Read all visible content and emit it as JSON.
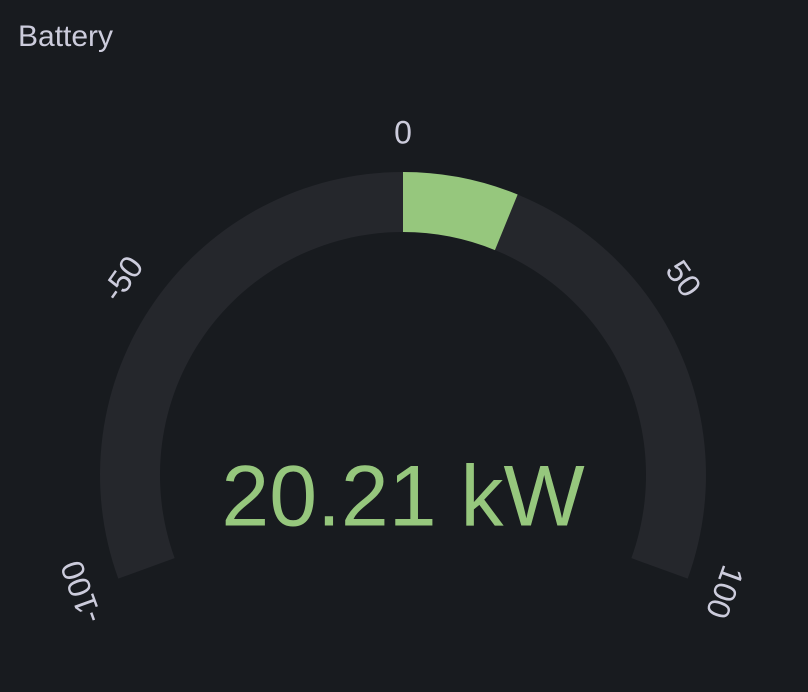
{
  "chart_data": {
    "type": "gauge",
    "title": "Battery",
    "value": 20.21,
    "value_label": "20.21 kW",
    "lim": [
      -100,
      100
    ],
    "ticks": [
      -100,
      -50,
      0,
      50,
      100
    ],
    "color": "#96c77d"
  }
}
